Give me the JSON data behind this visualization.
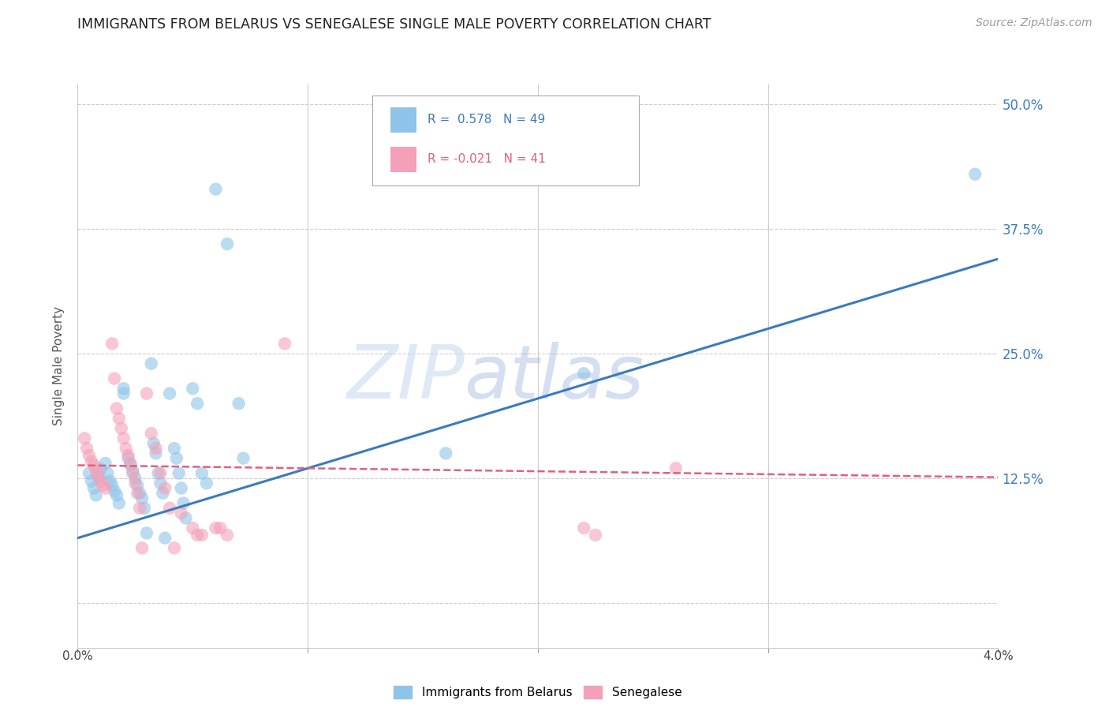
{
  "title": "IMMIGRANTS FROM BELARUS VS SENEGALESE SINGLE MALE POVERTY CORRELATION CHART",
  "source": "Source: ZipAtlas.com",
  "ylabel": "Single Male Poverty",
  "y_ticks": [
    0.0,
    0.125,
    0.25,
    0.375,
    0.5
  ],
  "y_tick_labels": [
    "",
    "12.5%",
    "25.0%",
    "37.5%",
    "50.0%"
  ],
  "x_lim": [
    0.0,
    0.04
  ],
  "y_lim": [
    -0.045,
    0.52
  ],
  "blue_scatter": [
    [
      0.0005,
      0.13
    ],
    [
      0.0006,
      0.122
    ],
    [
      0.0007,
      0.115
    ],
    [
      0.0008,
      0.108
    ],
    [
      0.0009,
      0.126
    ],
    [
      0.001,
      0.134
    ],
    [
      0.0012,
      0.14
    ],
    [
      0.0013,
      0.13
    ],
    [
      0.0014,
      0.122
    ],
    [
      0.0015,
      0.118
    ],
    [
      0.0016,
      0.112
    ],
    [
      0.0017,
      0.108
    ],
    [
      0.0018,
      0.1
    ],
    [
      0.002,
      0.215
    ],
    [
      0.002,
      0.21
    ],
    [
      0.0022,
      0.145
    ],
    [
      0.0023,
      0.138
    ],
    [
      0.0024,
      0.132
    ],
    [
      0.0025,
      0.125
    ],
    [
      0.0026,
      0.118
    ],
    [
      0.0027,
      0.11
    ],
    [
      0.0028,
      0.105
    ],
    [
      0.0029,
      0.095
    ],
    [
      0.003,
      0.07
    ],
    [
      0.0032,
      0.24
    ],
    [
      0.0033,
      0.16
    ],
    [
      0.0034,
      0.15
    ],
    [
      0.0035,
      0.13
    ],
    [
      0.0036,
      0.12
    ],
    [
      0.0037,
      0.11
    ],
    [
      0.0038,
      0.065
    ],
    [
      0.004,
      0.21
    ],
    [
      0.0042,
      0.155
    ],
    [
      0.0043,
      0.145
    ],
    [
      0.0044,
      0.13
    ],
    [
      0.0045,
      0.115
    ],
    [
      0.0046,
      0.1
    ],
    [
      0.0047,
      0.085
    ],
    [
      0.005,
      0.215
    ],
    [
      0.0052,
      0.2
    ],
    [
      0.0054,
      0.13
    ],
    [
      0.0056,
      0.12
    ],
    [
      0.006,
      0.415
    ],
    [
      0.0065,
      0.36
    ],
    [
      0.007,
      0.2
    ],
    [
      0.0072,
      0.145
    ],
    [
      0.016,
      0.15
    ],
    [
      0.022,
      0.23
    ],
    [
      0.039,
      0.43
    ]
  ],
  "pink_scatter": [
    [
      0.0003,
      0.165
    ],
    [
      0.0004,
      0.155
    ],
    [
      0.0005,
      0.148
    ],
    [
      0.0006,
      0.142
    ],
    [
      0.0007,
      0.138
    ],
    [
      0.0008,
      0.132
    ],
    [
      0.0009,
      0.128
    ],
    [
      0.001,
      0.122
    ],
    [
      0.0011,
      0.118
    ],
    [
      0.0012,
      0.115
    ],
    [
      0.0015,
      0.26
    ],
    [
      0.0016,
      0.225
    ],
    [
      0.0017,
      0.195
    ],
    [
      0.0018,
      0.185
    ],
    [
      0.0019,
      0.175
    ],
    [
      0.002,
      0.165
    ],
    [
      0.0021,
      0.155
    ],
    [
      0.0022,
      0.148
    ],
    [
      0.0023,
      0.14
    ],
    [
      0.0024,
      0.13
    ],
    [
      0.0025,
      0.12
    ],
    [
      0.0026,
      0.11
    ],
    [
      0.0027,
      0.095
    ],
    [
      0.0028,
      0.055
    ],
    [
      0.003,
      0.21
    ],
    [
      0.0032,
      0.17
    ],
    [
      0.0034,
      0.155
    ],
    [
      0.0036,
      0.13
    ],
    [
      0.0038,
      0.115
    ],
    [
      0.004,
      0.095
    ],
    [
      0.0042,
      0.055
    ],
    [
      0.0045,
      0.09
    ],
    [
      0.005,
      0.075
    ],
    [
      0.0052,
      0.068
    ],
    [
      0.0054,
      0.068
    ],
    [
      0.006,
      0.075
    ],
    [
      0.0062,
      0.075
    ],
    [
      0.0065,
      0.068
    ],
    [
      0.009,
      0.26
    ],
    [
      0.022,
      0.075
    ],
    [
      0.0225,
      0.068
    ],
    [
      0.026,
      0.135
    ]
  ],
  "blue_line_x": [
    0.0,
    0.04
  ],
  "blue_line_y": [
    0.065,
    0.345
  ],
  "pink_line_x": [
    0.0,
    0.04
  ],
  "pink_line_y": [
    0.138,
    0.126
  ],
  "blue_color": "#8ec4e8",
  "pink_color": "#f4a0b8",
  "blue_line_color": "#3a7bbf",
  "pink_line_color": "#e06080",
  "watermark_zip": "ZIP",
  "watermark_atlas": "atlas",
  "background_color": "#ffffff",
  "grid_color": "#cccccc"
}
